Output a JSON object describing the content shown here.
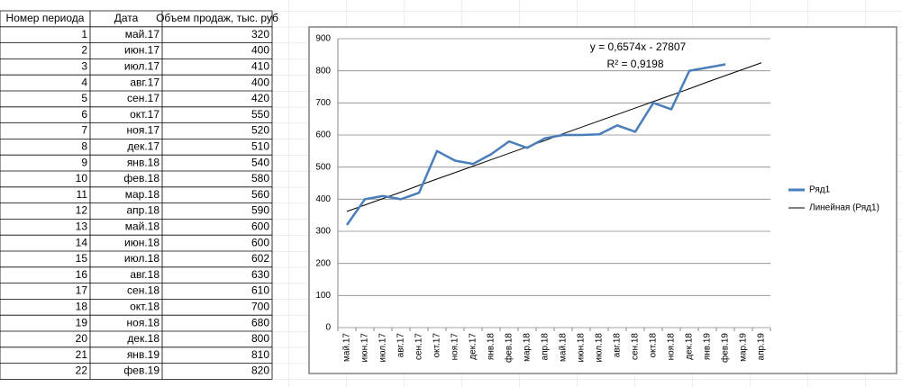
{
  "table": {
    "header": [
      "Номер периода",
      "Дата",
      "Объем продаж, тыс. руб"
    ],
    "rows": [
      [
        1,
        "май.17",
        320
      ],
      [
        2,
        "июн.17",
        400
      ],
      [
        3,
        "июл.17",
        410
      ],
      [
        4,
        "авг.17",
        400
      ],
      [
        5,
        "сен.17",
        420
      ],
      [
        6,
        "окт.17",
        550
      ],
      [
        7,
        "ноя.17",
        520
      ],
      [
        8,
        "дек.17",
        510
      ],
      [
        9,
        "янв.18",
        540
      ],
      [
        10,
        "фев.18",
        580
      ],
      [
        11,
        "мар.18",
        560
      ],
      [
        12,
        "апр.18",
        590
      ],
      [
        13,
        "май.18",
        600
      ],
      [
        14,
        "июн.18",
        600
      ],
      [
        15,
        "июл.18",
        602
      ],
      [
        16,
        "авг.18",
        630
      ],
      [
        17,
        "сен.18",
        610
      ],
      [
        18,
        "окт.18",
        700
      ],
      [
        19,
        "ноя.18",
        680
      ],
      [
        20,
        "дек.18",
        800
      ],
      [
        21,
        "янв.19",
        810
      ],
      [
        22,
        "фев.19",
        820
      ]
    ]
  },
  "chart_data": {
    "type": "line",
    "categories": [
      "май.17",
      "июн.17",
      "июл.17",
      "авг.17",
      "сен.17",
      "окт.17",
      "ноя.17",
      "дек.17",
      "янв.18",
      "фев.18",
      "мар.18",
      "апр.18",
      "май.18",
      "июн.18",
      "июл.18",
      "авг.18",
      "сен.18",
      "окт.18",
      "ноя.18",
      "дек.18",
      "янв.19",
      "фев.19",
      "мар.19",
      "апр.19"
    ],
    "series": [
      {
        "name": "Ряд1",
        "color": "#4a7ebb",
        "values": [
          320,
          400,
          410,
          400,
          420,
          550,
          520,
          510,
          540,
          580,
          560,
          590,
          600,
          600,
          602,
          630,
          610,
          700,
          680,
          800,
          810,
          820,
          null,
          null
        ]
      },
      {
        "name": "Линейная (Ряд1)",
        "color": "#000000",
        "values": [
          362,
          382,
          402,
          422,
          443,
          463,
          483,
          503,
          523,
          543,
          563,
          583,
          604,
          624,
          644,
          664,
          684,
          704,
          724,
          744,
          765,
          785,
          805,
          825
        ]
      }
    ],
    "annotations": [
      "y = 0,6574x - 27807",
      "R² = 0,9198"
    ],
    "ylim": [
      0,
      900
    ],
    "yticks": [
      0,
      100,
      200,
      300,
      400,
      500,
      600,
      700,
      800,
      900
    ],
    "grid": true,
    "legend": "right"
  }
}
